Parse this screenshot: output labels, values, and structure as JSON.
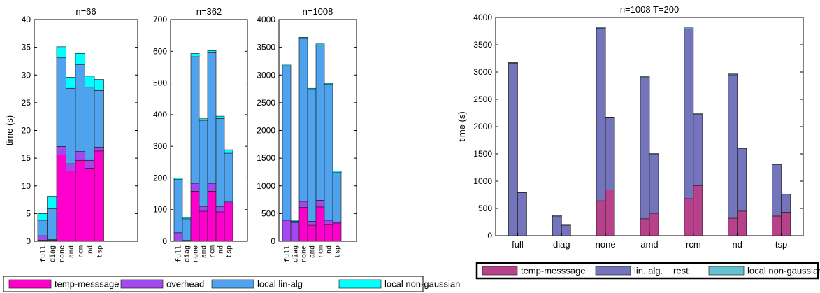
{
  "chart_data": [
    {
      "type": "bar",
      "stacked": true,
      "title": "n=66",
      "ylabel": "time (s)",
      "ylim": [
        0,
        40
      ],
      "yticks": [
        0,
        5,
        10,
        15,
        20,
        25,
        30,
        35,
        40
      ],
      "categories": [
        "full",
        "diag",
        "none",
        "amd",
        "rcm",
        "nd",
        "tsp"
      ],
      "series": [
        {
          "name": "temp-messsage",
          "color": "#ff00cc",
          "values": [
            0.2,
            0.2,
            15.6,
            12.7,
            14.6,
            13.2,
            16.3
          ]
        },
        {
          "name": "overhead",
          "color": "#a347ee",
          "values": [
            0.8,
            0.1,
            1.5,
            1.3,
            1.6,
            1.4,
            0.7
          ]
        },
        {
          "name": "local lin-alg",
          "color": "#4fa3ee",
          "values": [
            2.8,
            5.6,
            16.0,
            13.6,
            15.7,
            13.2,
            10.2
          ]
        },
        {
          "name": "local non-gaussian",
          "color": "#00ffff",
          "values": [
            1.2,
            2.1,
            2.0,
            2.0,
            2.0,
            2.0,
            2.0
          ]
        }
      ]
    },
    {
      "type": "bar",
      "stacked": true,
      "title": "n=362",
      "ylim": [
        0,
        700
      ],
      "yticks": [
        0,
        100,
        200,
        300,
        400,
        500,
        600,
        700
      ],
      "categories": [
        "full",
        "diag",
        "none",
        "amd",
        "rcm",
        "nd",
        "tsp"
      ],
      "series": [
        {
          "name": "temp-messsage",
          "color": "#ff00cc",
          "values": [
            0,
            0,
            158,
            95,
            158,
            93,
            120
          ]
        },
        {
          "name": "overhead",
          "color": "#a347ee",
          "values": [
            27,
            3,
            25,
            15,
            25,
            17,
            4
          ]
        },
        {
          "name": "local lin-alg",
          "color": "#4fa3ee",
          "values": [
            168,
            68,
            400,
            272,
            412,
            278,
            154
          ]
        },
        {
          "name": "local non-gaussian",
          "color": "#00ffff",
          "values": [
            5,
            4,
            10,
            5,
            7,
            7,
            11
          ]
        }
      ]
    },
    {
      "type": "bar",
      "stacked": true,
      "title": "n=1008",
      "ylim": [
        0,
        4000
      ],
      "yticks": [
        0,
        500,
        1000,
        1500,
        2000,
        2500,
        3000,
        3500,
        4000
      ],
      "categories": [
        "full",
        "diag",
        "none",
        "amd",
        "rcm",
        "nd",
        "tsp"
      ],
      "series": [
        {
          "name": "temp-messsage",
          "color": "#ff00cc",
          "values": [
            0,
            0,
            610,
            290,
            620,
            300,
            330
          ]
        },
        {
          "name": "overhead",
          "color": "#a347ee",
          "values": [
            380,
            340,
            110,
            70,
            120,
            80,
            20
          ]
        },
        {
          "name": "local lin-alg",
          "color": "#4fa3ee",
          "values": [
            2780,
            20,
            2940,
            2380,
            2800,
            2450,
            890
          ]
        },
        {
          "name": "local non-gaussian",
          "color": "#00ffff",
          "values": [
            20,
            20,
            20,
            20,
            20,
            20,
            30
          ]
        }
      ]
    },
    {
      "type": "bar",
      "stacked": true,
      "grouped": true,
      "title": "n=1008 T=200",
      "ylabel": "time (s)",
      "ylim": [
        0,
        4000
      ],
      "yticks": [
        0,
        500,
        1000,
        1500,
        2000,
        2500,
        3000,
        3500,
        4000
      ],
      "categories": [
        "full",
        "diag",
        "none",
        "amd",
        "rcm",
        "nd",
        "tsp"
      ],
      "series": [
        {
          "name": "temp-messsage",
          "color": "#b8418b",
          "values": [
            [
              0,
              0
            ],
            [
              0,
              0
            ],
            [
              640,
              840
            ],
            [
              310,
              410
            ],
            [
              680,
              920
            ],
            [
              320,
              450
            ],
            [
              360,
              430
            ]
          ]
        },
        {
          "name": "lin. alg. + rest",
          "color": "#7474bc",
          "values": [
            [
              3160,
              790
            ],
            [
              360,
              190
            ],
            [
              3160,
              1320
            ],
            [
              2590,
              1090
            ],
            [
              3110,
              1310
            ],
            [
              2630,
              1150
            ],
            [
              940,
              330
            ]
          ]
        },
        {
          "name": "local non-gaussian",
          "color": "#63c3d3",
          "values": [
            [
              15,
              5
            ],
            [
              15,
              5
            ],
            [
              20,
              5
            ],
            [
              15,
              5
            ],
            [
              20,
              5
            ],
            [
              15,
              5
            ],
            [
              15,
              5
            ]
          ]
        }
      ]
    }
  ],
  "colors": {
    "axis": "#000000",
    "bar_edge": "#222222"
  }
}
